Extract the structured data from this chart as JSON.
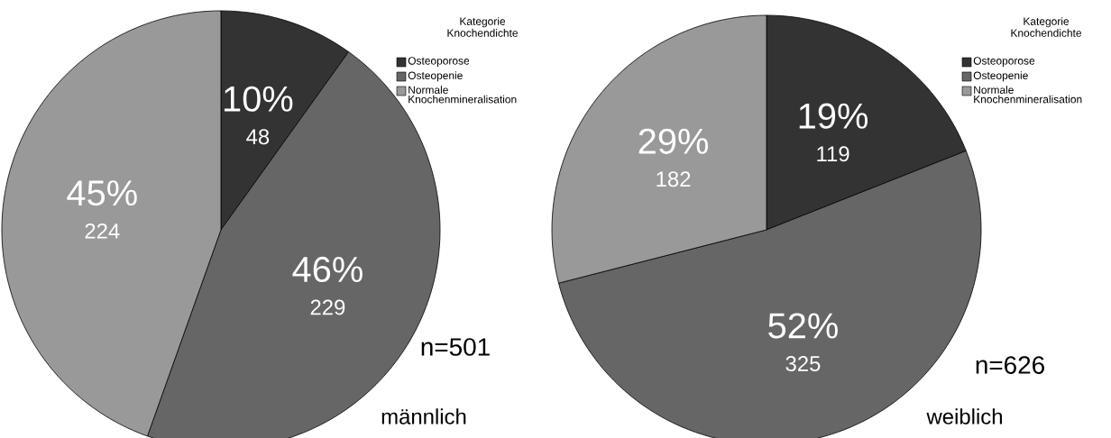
{
  "chart_data": [
    {
      "type": "pie",
      "categories": [
        "Osteoporose",
        "Osteopenie",
        "Normale Knochenmineralisation"
      ],
      "values": [
        10,
        46,
        45
      ],
      "value_labels": [
        "10%",
        "46%",
        "45%"
      ],
      "colors": [
        "#333333",
        "#666666",
        "#999999"
      ],
      "legend_title": "Kategorie Knochendichte",
      "legend": "top right",
      "annotations": [
        "n=501",
        "männlich",
        {
          "text": "48",
          "x": "Osteoporose"
        },
        {
          "text": "229",
          "x": "Osteopenie"
        },
        {
          "text": "224",
          "x": "Normale Knochenmineralisation"
        }
      ]
    },
    {
      "type": "pie",
      "categories": [
        "Osteoporose",
        "Osteopenie",
        "Normale Knochenmineralisation"
      ],
      "values": [
        19,
        52,
        29
      ],
      "value_labels": [
        "19%",
        "52%",
        "29%"
      ],
      "colors": [
        "#333333",
        "#666666",
        "#999999"
      ],
      "legend_title": "Kategorie Knochendichte",
      "legend": "top right",
      "annotations": [
        "n=626",
        "weiblich",
        {
          "text": "119",
          "x": "Osteoporose"
        },
        {
          "text": "325",
          "x": "Osteopenie"
        },
        {
          "text": "182",
          "x": "Normale Knochenmineralisation"
        }
      ]
    }
  ]
}
